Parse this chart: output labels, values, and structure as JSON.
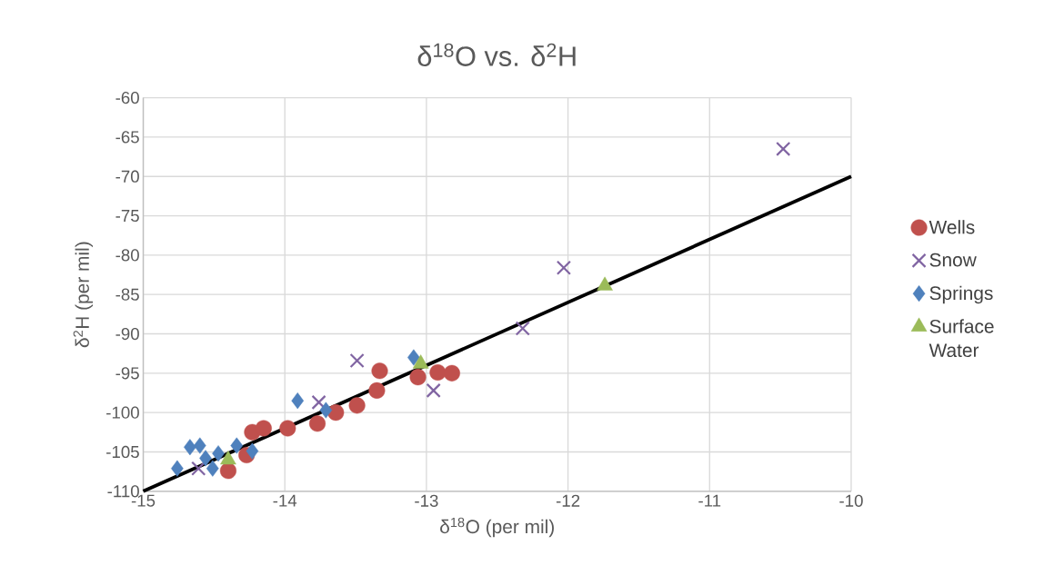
{
  "chart_data": {
    "type": "scatter",
    "title": "δ$^{18}$O vs. δ$^{2}$H",
    "xlabel": "δ$^{18}$O (per mil)",
    "ylabel": "δ$^{2}$H (per mil)",
    "xlim": [
      -15,
      -10
    ],
    "ylim": [
      -110,
      -60
    ],
    "xticks": [
      -15,
      -14,
      -13,
      -12,
      -11,
      -10
    ],
    "yticks": [
      -110,
      -105,
      -100,
      -95,
      -90,
      -85,
      -80,
      -75,
      -70,
      -65,
      -60
    ],
    "grid": true,
    "legend": "right",
    "series": [
      {
        "type": "line",
        "color": "#000000",
        "marker": "none",
        "x": [
          -15,
          -10
        ],
        "values": [
          -110,
          -70
        ]
      },
      {
        "name": "Wells",
        "color": "#c0504d",
        "marker": "circle",
        "x": [
          -14.4,
          -14.27,
          -14.23,
          -14.15,
          -13.98,
          -13.77,
          -13.64,
          -13.49,
          -13.35,
          -13.33,
          -13.06,
          -12.92,
          -12.82
        ],
        "values": [
          -107.4,
          -105.4,
          -102.5,
          -102.0,
          -102.0,
          -101.4,
          -100.0,
          -99.1,
          -97.2,
          -94.7,
          -95.5,
          -94.9,
          -95.0
        ]
      },
      {
        "name": "Snow",
        "color": "#8064a2",
        "marker": "cross",
        "x": [
          -14.61,
          -13.76,
          -13.49,
          -12.95,
          -12.32,
          -12.03,
          -10.48
        ],
        "values": [
          -107.1,
          -98.7,
          -93.4,
          -97.2,
          -89.3,
          -81.6,
          -66.5
        ]
      },
      {
        "name": "Springs",
        "color": "#4f81bd",
        "marker": "diamond",
        "x": [
          -14.76,
          -14.67,
          -14.6,
          -14.56,
          -14.51,
          -14.47,
          -14.34,
          -14.23,
          -13.91,
          -13.71,
          -13.09
        ],
        "values": [
          -107.1,
          -104.4,
          -104.2,
          -105.8,
          -107.1,
          -105.2,
          -104.2,
          -104.9,
          -98.5,
          -99.7,
          -93.0
        ]
      },
      {
        "name": "Surface Water",
        "color": "#9bbb59",
        "marker": "triangle",
        "x": [
          -14.4,
          -13.04,
          -11.74
        ],
        "values": [
          -106.0,
          -93.8,
          -83.9
        ]
      }
    ]
  }
}
